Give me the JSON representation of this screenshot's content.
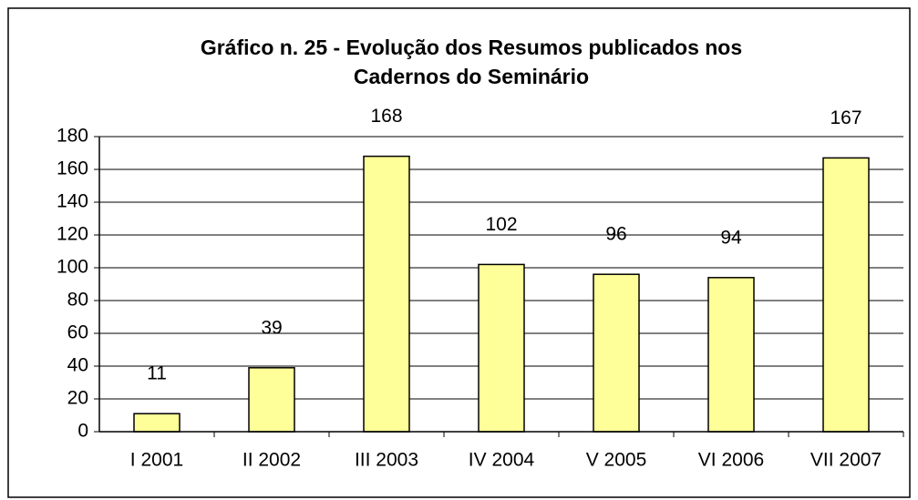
{
  "chart_data": {
    "type": "bar",
    "title": [
      "Gráfico n. 25 - Evolução dos Resumos publicados nos",
      "Cadernos do Seminário"
    ],
    "categories": [
      "I 2001",
      "II 2002",
      "III 2003",
      "IV 2004",
      "V 2005",
      "VI 2006",
      "VII 2007"
    ],
    "values": [
      11,
      39,
      168,
      102,
      96,
      94,
      167
    ],
    "color": "#ffff99",
    "ylim": [
      0,
      180
    ],
    "yticks": [
      0,
      20,
      40,
      60,
      80,
      100,
      120,
      140,
      160,
      180
    ],
    "grid": true
  }
}
